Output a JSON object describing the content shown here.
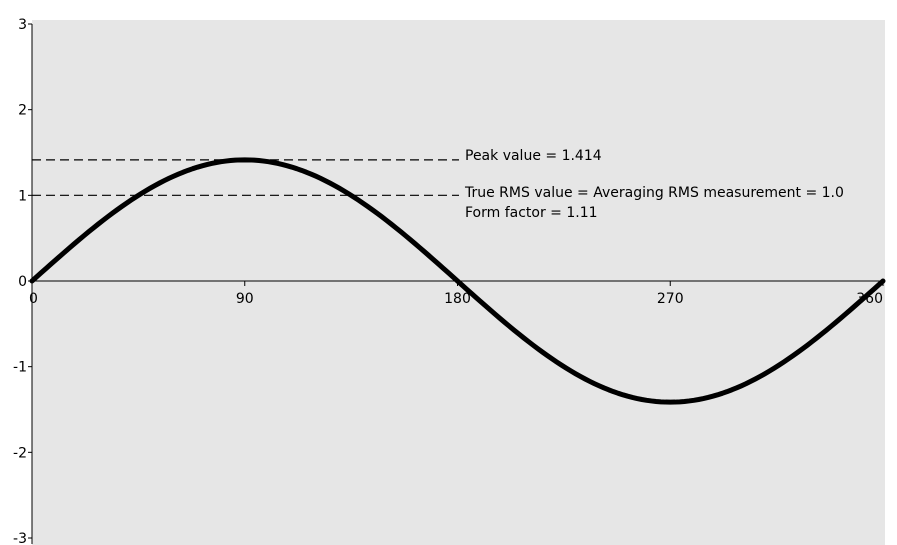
{
  "chart_data": {
    "type": "line",
    "title": "",
    "xlabel": "",
    "ylabel": "",
    "xlim": [
      0,
      360
    ],
    "ylim": [
      -3,
      3
    ],
    "x_ticks": [
      0,
      90,
      180,
      270,
      360
    ],
    "y_ticks": [
      3,
      2,
      1,
      0,
      -1,
      -2,
      -3
    ],
    "x_tick_labels": [
      "0",
      "90",
      "180",
      "270",
      "360"
    ],
    "y_tick_labels": [
      "3",
      "2",
      "1",
      "0",
      "-1",
      "-2",
      "-3"
    ],
    "grid": false,
    "background": "#e6e6e6",
    "series": [
      {
        "function": "1.414*sin(x)",
        "color": "#000000",
        "x": [
          0,
          15,
          30,
          45,
          60,
          75,
          90,
          105,
          120,
          135,
          150,
          165,
          180,
          195,
          210,
          225,
          240,
          255,
          270,
          285,
          300,
          315,
          330,
          345,
          360
        ],
        "y": [
          0,
          0.366,
          0.707,
          1.0,
          1.225,
          1.366,
          1.414,
          1.366,
          1.225,
          1.0,
          0.707,
          0.366,
          0,
          -0.366,
          -0.707,
          -1.0,
          -1.225,
          -1.366,
          -1.414,
          -1.366,
          -1.225,
          -1.0,
          -0.707,
          -0.366,
          0
        ]
      }
    ],
    "reference_lines": [
      {
        "y": 1.414,
        "style": "dashed",
        "x_end": 180
      },
      {
        "y": 1.0,
        "style": "dashed",
        "x_end": 180
      }
    ],
    "annotations": [
      {
        "text": "Peak value = 1.414"
      },
      {
        "text": "True RMS value = Averaging RMS measurement = 1.0"
      },
      {
        "text": "Form factor = 1.11"
      }
    ]
  }
}
